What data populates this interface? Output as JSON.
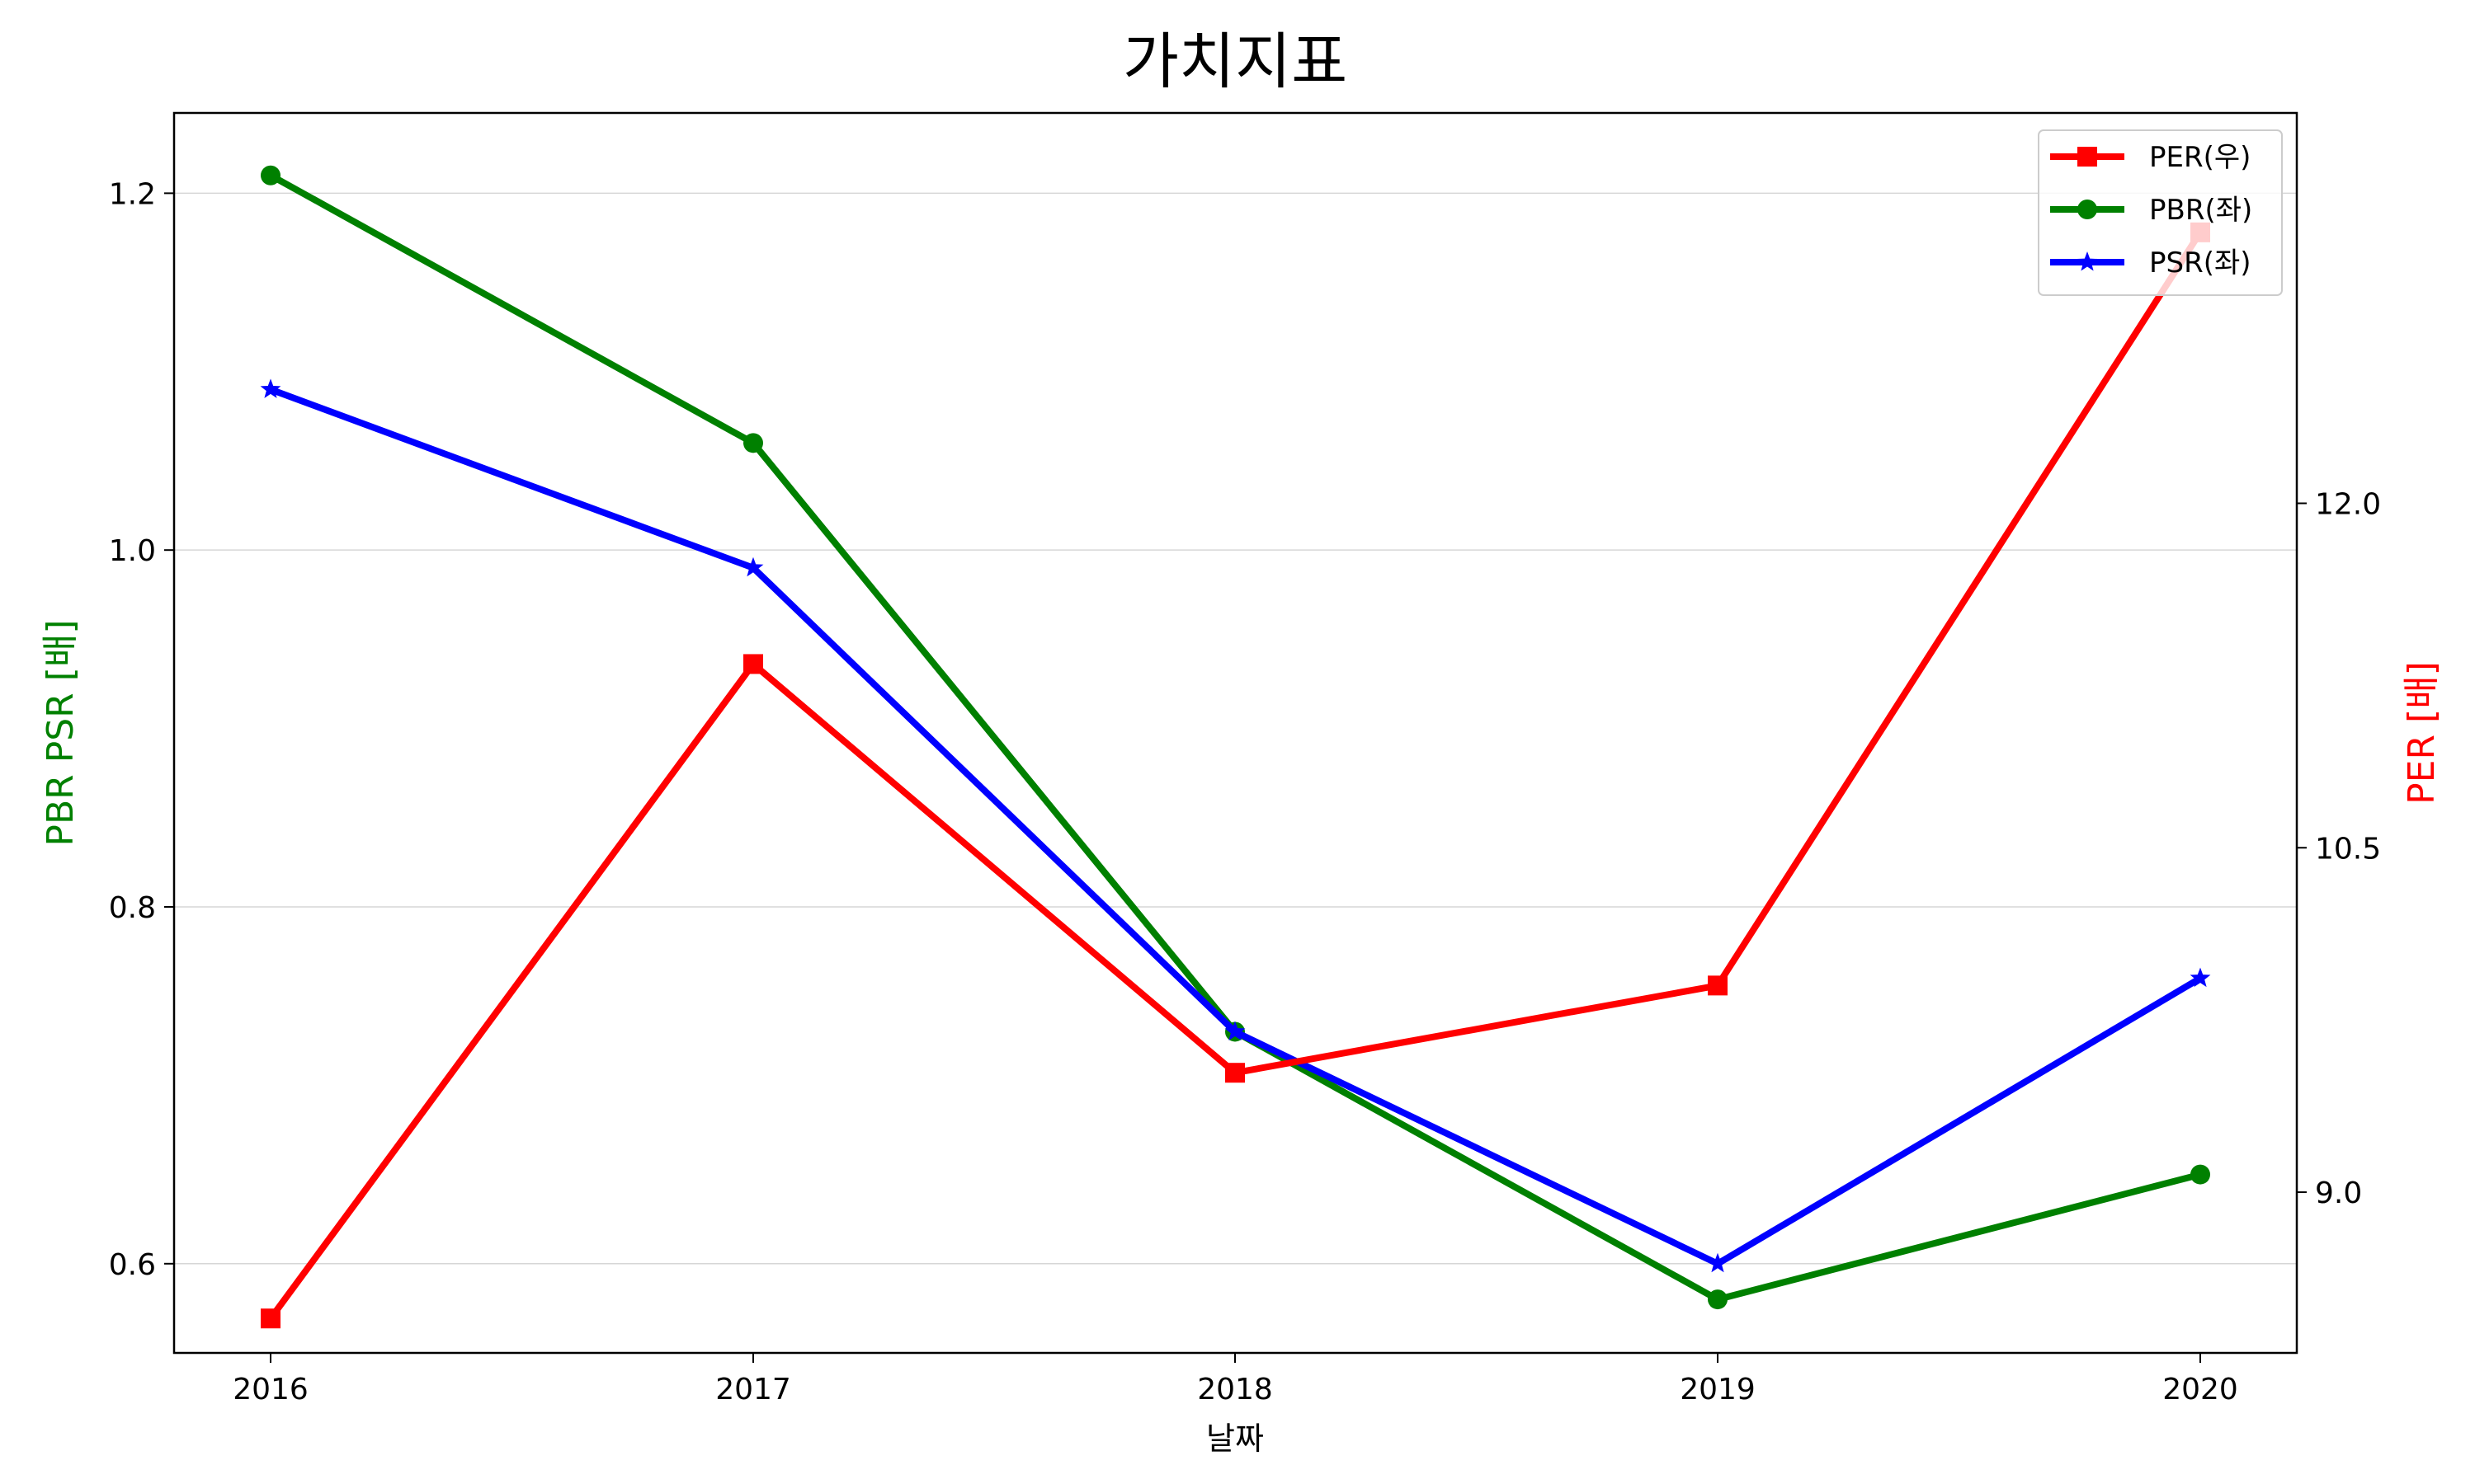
{
  "chart_data": {
    "type": "line",
    "title": "가치지표",
    "xlabel": "날짜",
    "ylabel_left": "PBR PSR [배]",
    "ylabel_right": "PER [배]",
    "ylabel_left_color": "#008000",
    "ylabel_right_color": "#ff0000",
    "categories": [
      "2016",
      "2017",
      "2018",
      "2019",
      "2020"
    ],
    "ylim_left": [
      0.55,
      1.245
    ],
    "yticks_left": [
      "0.6",
      "0.8",
      "1.0",
      "1.2"
    ],
    "ylim_right": [
      8.3,
      13.7
    ],
    "yticks_right": [
      "9.0",
      "10.5",
      "12.0"
    ],
    "grid": "horizontal, left axis",
    "legend_position": "top-right",
    "series": [
      {
        "name": "PER(우)",
        "axis": "right",
        "color": "#ff0000",
        "marker": "square",
        "values": [
          8.45,
          11.3,
          9.52,
          9.9,
          13.18
        ]
      },
      {
        "name": "PBR(좌)",
        "axis": "left",
        "color": "#008000",
        "marker": "circle",
        "values": [
          1.21,
          1.06,
          0.73,
          0.58,
          0.65
        ]
      },
      {
        "name": "PSR(좌)",
        "axis": "left",
        "color": "#0000ff",
        "marker": "star",
        "values": [
          1.09,
          0.99,
          0.73,
          0.6,
          0.76
        ]
      }
    ]
  }
}
